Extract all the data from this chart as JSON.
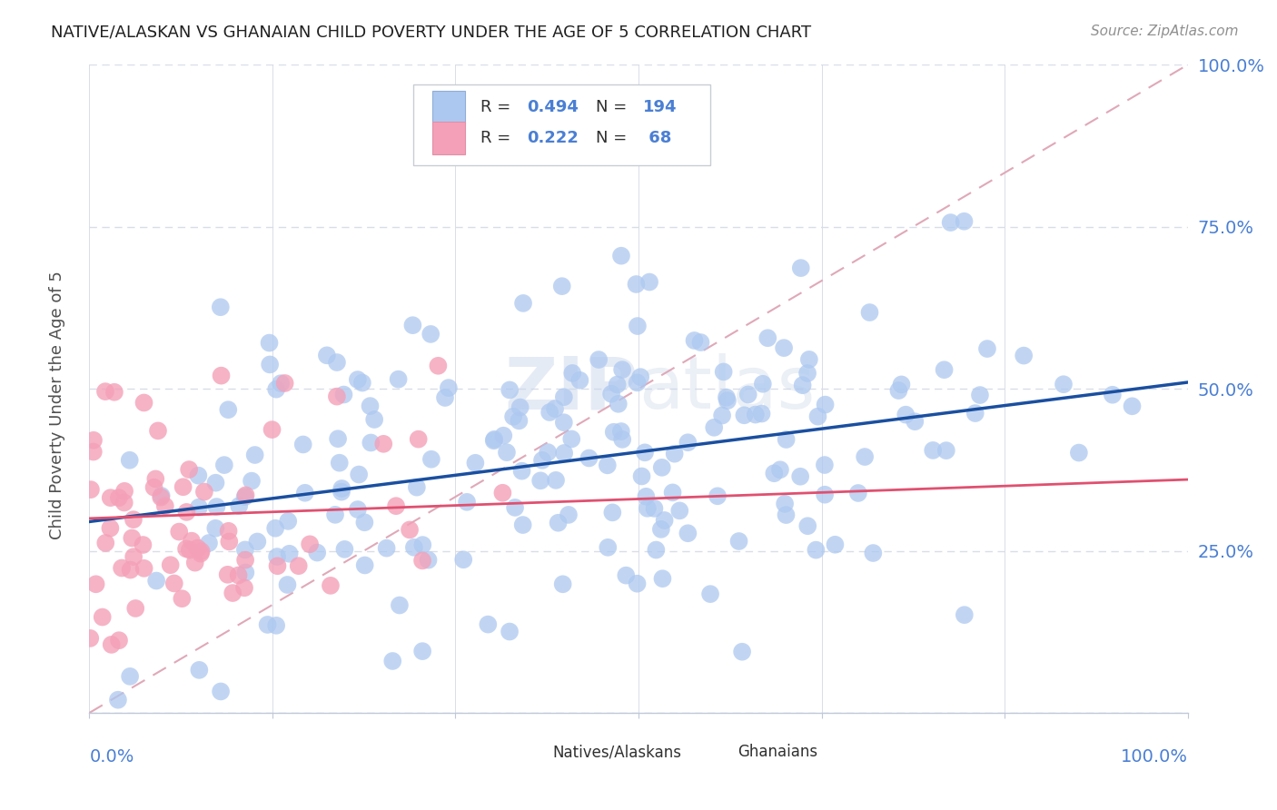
{
  "title": "NATIVE/ALASKAN VS GHANAIAN CHILD POVERTY UNDER THE AGE OF 5 CORRELATION CHART",
  "source": "Source: ZipAtlas.com",
  "ylabel": "Child Poverty Under the Age of 5",
  "blue_color": "#adc8f0",
  "pink_color": "#f4a0b8",
  "blue_line_color": "#1a4fa0",
  "pink_line_color": "#e05070",
  "dashed_line_color": "#e0a8b8",
  "background_color": "#ffffff",
  "grid_color": "#d8dde8",
  "tick_color": "#4a7fd4",
  "R_blue": 0.494,
  "N_blue": 194,
  "R_pink": 0.222,
  "N_pink": 68,
  "seed_blue": 12,
  "seed_pink": 77,
  "blue_intercept": 0.295,
  "blue_slope": 0.215,
  "pink_intercept": 0.3,
  "pink_slope": 0.06
}
